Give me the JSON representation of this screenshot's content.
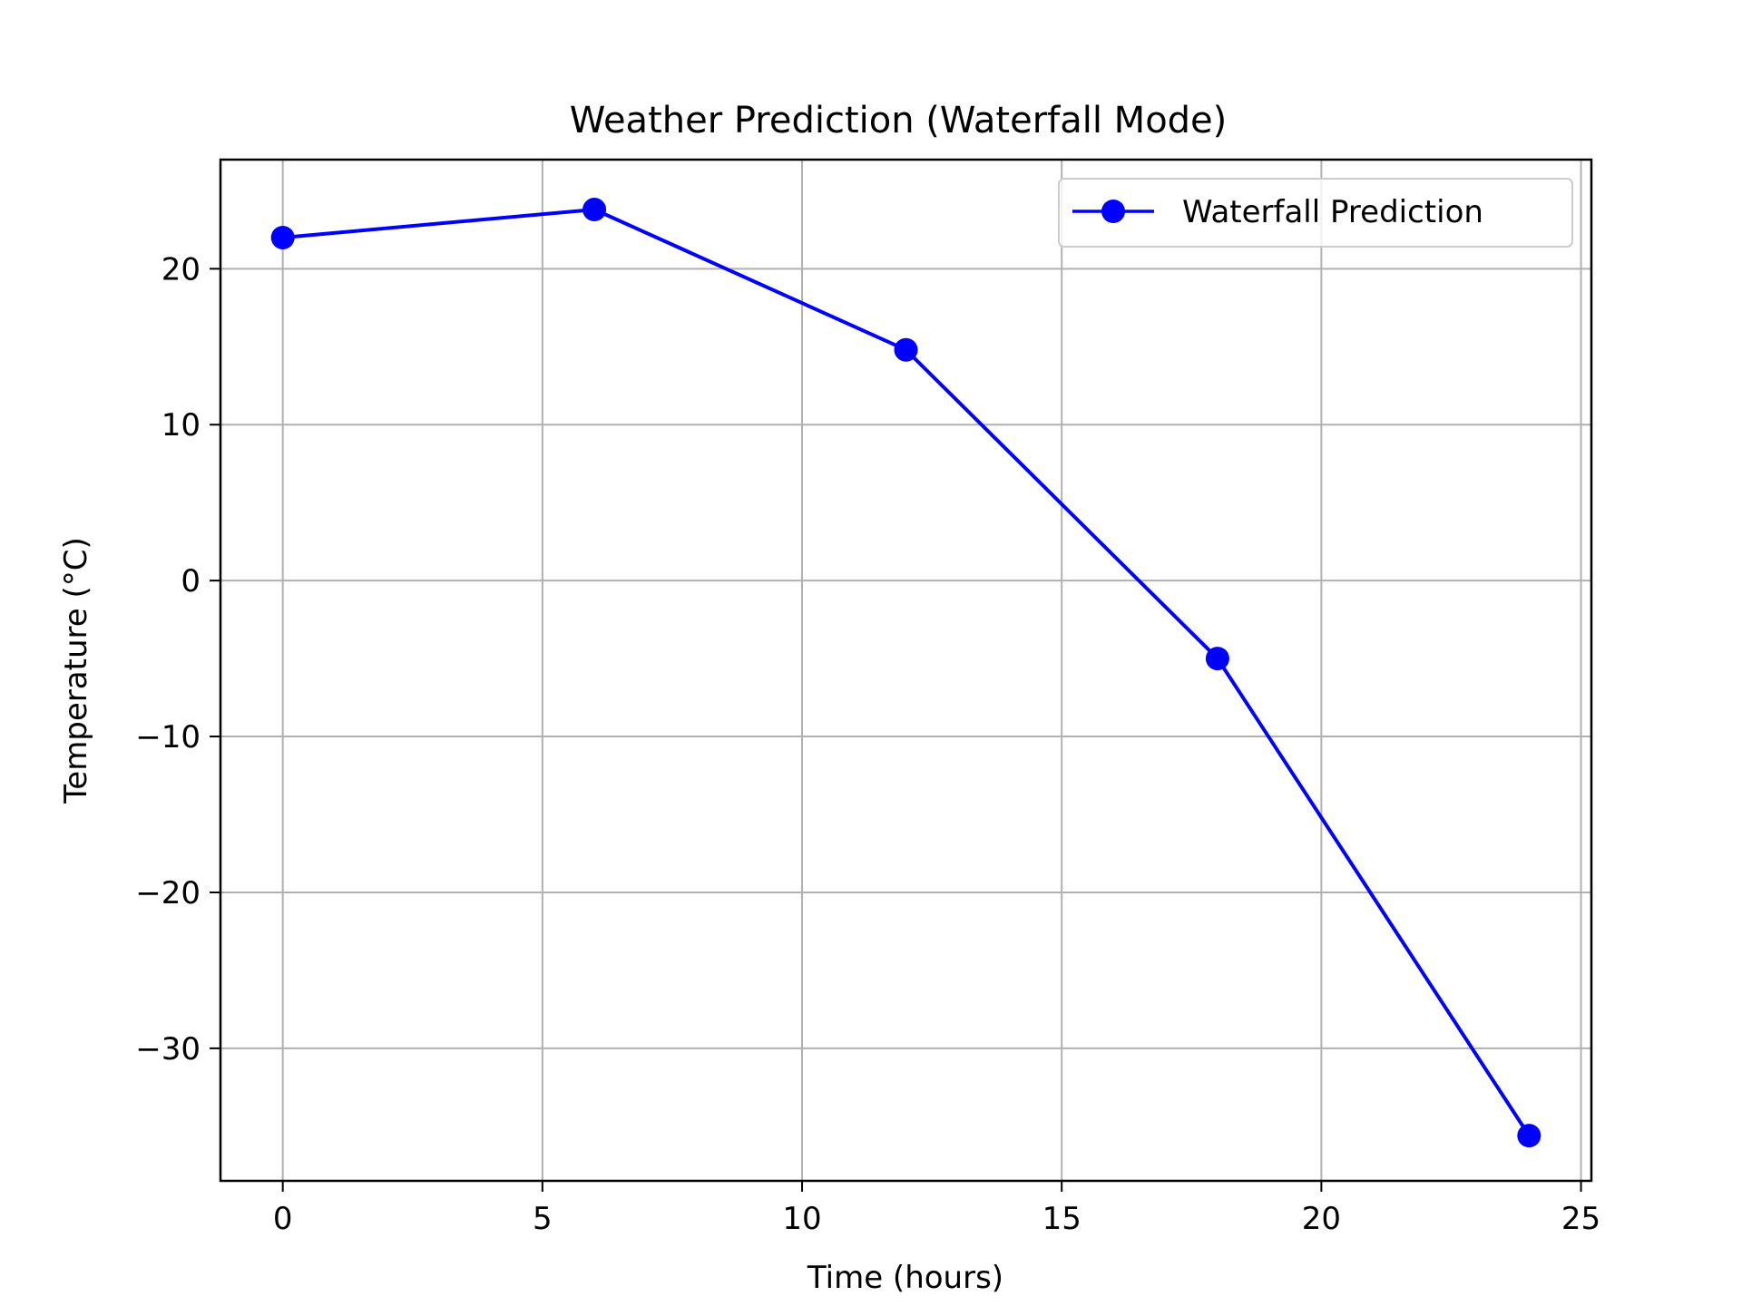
{
  "colors": {
    "series": "#0000ff",
    "grid": "#b0b0b0",
    "axes": "#000000",
    "background": "#ffffff"
  },
  "chart_data": {
    "type": "line",
    "title": "Weather Prediction (Waterfall Mode)",
    "xlabel": "Time (hours)",
    "ylabel": "Temperature (°C)",
    "xlim": [
      -1.2,
      25.2
    ],
    "ylim": [
      -38.5,
      27
    ],
    "xticks": [
      0,
      5,
      10,
      15,
      20,
      25
    ],
    "xtick_labels": [
      "0",
      "5",
      "10",
      "15",
      "20",
      "25"
    ],
    "yticks": [
      20,
      10,
      0,
      -10,
      -20,
      -30
    ],
    "ytick_labels": [
      "20",
      "10",
      "0",
      "−10",
      "−20",
      "−30"
    ],
    "grid": true,
    "legend_position": "upper right",
    "series": [
      {
        "name": "Waterfall Prediction",
        "color": "#0000ff",
        "marker": "circle",
        "x": [
          0,
          6,
          12,
          18,
          24
        ],
        "y": [
          22.0,
          23.8,
          14.8,
          -5.0,
          -35.6
        ]
      }
    ]
  }
}
